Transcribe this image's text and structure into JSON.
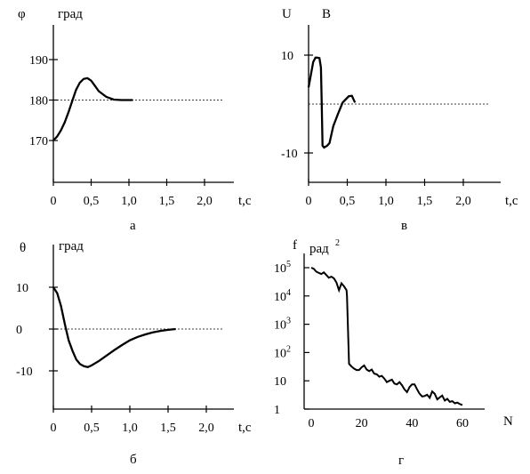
{
  "chart_data": [
    {
      "id": "a",
      "type": "line",
      "caption": "а",
      "ylabel_symbol": "φ",
      "ylabel_unit": "град",
      "xlabel": "t,c",
      "x_ticks": [
        "0",
        "0,5",
        "1,0",
        "1,5",
        "2,0"
      ],
      "x_tick_values": [
        0,
        0.5,
        1.0,
        1.5,
        2.0
      ],
      "y_ticks": [
        "190",
        "180",
        "170"
      ],
      "y_tick_values": [
        190,
        180,
        170
      ],
      "xlim": [
        0,
        2.0
      ],
      "ylim": [
        170,
        190
      ],
      "reference_line": 180,
      "series": [
        {
          "x": [
            0,
            0.05,
            0.1,
            0.15,
            0.2,
            0.25,
            0.3,
            0.35,
            0.4,
            0.45,
            0.5,
            0.55,
            0.6,
            0.7,
            0.8,
            0.9,
            1.0,
            1.05
          ],
          "y": [
            170,
            171,
            172.5,
            174.5,
            177,
            179.8,
            182.5,
            184.3,
            185.2,
            185.4,
            184.8,
            183.5,
            182.2,
            180.8,
            180.1,
            180,
            180,
            180
          ]
        }
      ]
    },
    {
      "id": "v",
      "type": "line",
      "caption": "в",
      "ylabel_symbol": "U",
      "ylabel_unit": "В",
      "xlabel": "t,c",
      "x_ticks": [
        "0",
        "0,5",
        "1,0",
        "1,5",
        "2,0"
      ],
      "x_tick_values": [
        0,
        0.5,
        1.0,
        1.5,
        2.0
      ],
      "y_ticks": [
        "10",
        "-10"
      ],
      "y_tick_values": [
        10,
        -10
      ],
      "xlim": [
        0,
        2.0
      ],
      "ylim": [
        -10,
        10
      ],
      "reference_line": 0,
      "series": [
        {
          "x": [
            0,
            0.03,
            0.06,
            0.09,
            0.11,
            0.14,
            0.16,
            0.17,
            0.18,
            0.2,
            0.24,
            0.27,
            0.32,
            0.38,
            0.44,
            0.52,
            0.56,
            0.6
          ],
          "y": [
            3.4,
            6,
            8.6,
            9.5,
            9.5,
            9.4,
            7.5,
            0,
            -8.5,
            -8.9,
            -8.5,
            -8,
            -4.5,
            -2,
            0.3,
            1.6,
            1.7,
            0.3
          ]
        }
      ]
    },
    {
      "id": "b",
      "type": "line",
      "caption": "б",
      "ylabel_symbol": "θ",
      "ylabel_unit": "град",
      "xlabel": "t,c",
      "x_ticks": [
        "0",
        "0,5",
        "1,0",
        "1,5",
        "2,0"
      ],
      "x_tick_values": [
        0,
        0.5,
        1.0,
        1.5,
        2.0
      ],
      "y_ticks": [
        "10",
        "0",
        "-10"
      ],
      "y_tick_values": [
        10,
        0,
        -10
      ],
      "xlim": [
        0,
        2.0
      ],
      "ylim": [
        -10,
        10
      ],
      "reference_line": 0,
      "series": [
        {
          "x": [
            0,
            0.05,
            0.1,
            0.15,
            0.2,
            0.25,
            0.3,
            0.35,
            0.4,
            0.45,
            0.5,
            0.6,
            0.7,
            0.8,
            0.9,
            1.0,
            1.1,
            1.2,
            1.3,
            1.4,
            1.5,
            1.6
          ],
          "y": [
            10,
            8.6,
            5.5,
            1.2,
            -2.7,
            -5.2,
            -7.3,
            -8.4,
            -8.9,
            -9.1,
            -8.7,
            -7.6,
            -6.3,
            -5,
            -3.8,
            -2.7,
            -1.9,
            -1.3,
            -0.8,
            -0.45,
            -0.2,
            0
          ]
        }
      ]
    },
    {
      "id": "g",
      "type": "line",
      "caption": "г",
      "ylabel_symbol": "f",
      "ylabel_unit": "рад",
      "ylabel_unit_sup": "2",
      "xlabel": "N",
      "x_ticks": [
        "0",
        "20",
        "40",
        "60"
      ],
      "x_tick_values": [
        0,
        20,
        40,
        60
      ],
      "y_ticks": [
        {
          "base": "10",
          "sup": "5"
        },
        {
          "base": "10",
          "sup": "4"
        },
        {
          "base": "10",
          "sup": "3"
        },
        {
          "base": "10",
          "sup": "2"
        },
        {
          "base": "10",
          "sup": ""
        },
        {
          "base": "1",
          "sup": ""
        }
      ],
      "y_tick_values": [
        100000,
        10000,
        1000,
        100,
        10,
        1
      ],
      "y_scale": "log",
      "xlim": [
        0,
        60
      ],
      "ylim": [
        1,
        100000
      ],
      "series": [
        {
          "x": [
            0,
            1,
            2,
            3,
            4,
            5,
            6,
            7,
            8,
            9,
            10,
            11,
            12,
            13,
            14,
            14.2,
            15,
            16,
            17,
            18,
            19,
            20,
            21,
            22,
            23,
            24,
            25,
            26,
            27,
            28,
            29,
            30,
            31,
            32,
            33,
            34,
            35,
            36,
            37,
            38,
            39,
            40,
            41,
            42,
            43,
            44,
            45,
            46,
            47,
            48,
            49,
            50,
            51,
            52,
            53,
            54,
            55,
            56,
            57,
            58,
            59,
            60
          ],
          "y": [
            100000,
            92000,
            72000,
            65000,
            60000,
            68000,
            55000,
            44000,
            48000,
            42000,
            30000,
            16000,
            28000,
            22000,
            16000,
            10000,
            40,
            32,
            27,
            24,
            24,
            30,
            35,
            25,
            22,
            25,
            18,
            17,
            14,
            15,
            12,
            9,
            10,
            11,
            8,
            7.5,
            9,
            7,
            5,
            4,
            6,
            7.5,
            7.5,
            5,
            3.5,
            2.8,
            2.9,
            3.2,
            2.5,
            4.2,
            3.5,
            2.2,
            2.6,
            3,
            2,
            2.3,
            1.8,
            1.9,
            1.6,
            1.7,
            1.5,
            1.4
          ]
        }
      ]
    }
  ]
}
